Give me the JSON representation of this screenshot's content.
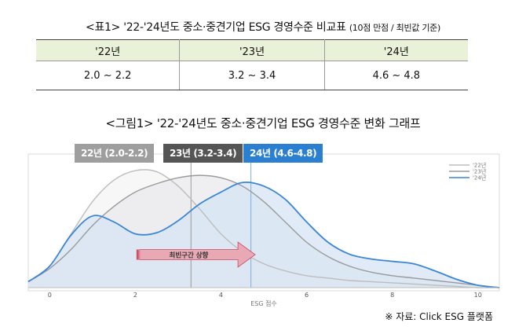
{
  "table": {
    "caption": "<표1> '22-'24년도 중소·중견기업 ESG 경영수준 비교표",
    "caption_note": "(10점 만점 / 최빈값 기준)",
    "headers": [
      "'22년",
      "'23년",
      "'24년"
    ],
    "row": [
      "2.0 ~ 2.2",
      "3.2 ~ 3.4",
      "4.6 ~ 4.8"
    ]
  },
  "figure": {
    "caption": "<그림1> '22-'24년도 중소·중견기업 ESG 경영수준 변화 그래프",
    "badges": [
      "22년 (2.0-2.2)",
      "23년 (3.2-3.4)",
      "24년 (4.6-4.8)"
    ],
    "arrow_label": "최빈구간 상향",
    "source": "※ 자료: Click ESG 플랫폼"
  },
  "colors": {
    "y22": "#bdbdbd",
    "y23": "#9a9a9a",
    "y24": "#3b86d6",
    "fill24": "#d6e4f4",
    "arrow": "#e8a9b4",
    "badge22": "#9e9e9e",
    "badge23": "#555555",
    "badge24": "#2a7fd0"
  },
  "chart_data": {
    "type": "area",
    "xlabel": "ESG 점수",
    "xlim": [
      -0.5,
      10.5
    ],
    "xticks": [
      "0",
      "2",
      "4",
      "6",
      "8",
      "10"
    ],
    "ylim": [
      0,
      1
    ],
    "legend": {
      "position": "top-right",
      "labels": [
        "'22년",
        "'23년",
        "'24년"
      ]
    },
    "x": [
      -0.5,
      0,
      0.5,
      1,
      1.5,
      2,
      2.5,
      3,
      3.5,
      4,
      4.5,
      5,
      5.5,
      6,
      6.5,
      7,
      7.5,
      8,
      8.5,
      9,
      9.5,
      10,
      10.5
    ],
    "series": [
      {
        "name": "'22년",
        "values": [
          0.05,
          0.18,
          0.45,
          0.72,
          0.9,
          0.98,
          0.97,
          0.85,
          0.66,
          0.45,
          0.3,
          0.2,
          0.14,
          0.1,
          0.08,
          0.06,
          0.05,
          0.04,
          0.03,
          0.02,
          0.01,
          0.0,
          0.0
        ]
      },
      {
        "name": "'23년",
        "values": [
          0.05,
          0.16,
          0.32,
          0.52,
          0.68,
          0.8,
          0.87,
          0.92,
          0.94,
          0.92,
          0.85,
          0.72,
          0.55,
          0.38,
          0.26,
          0.18,
          0.13,
          0.1,
          0.08,
          0.06,
          0.04,
          0.02,
          0.0
        ]
      },
      {
        "name": "'24년",
        "values": [
          0.05,
          0.18,
          0.44,
          0.6,
          0.55,
          0.45,
          0.46,
          0.56,
          0.7,
          0.8,
          0.88,
          0.85,
          0.74,
          0.55,
          0.38,
          0.28,
          0.24,
          0.22,
          0.2,
          0.14,
          0.07,
          0.02,
          0.0
        ]
      }
    ],
    "reference_lines": [
      3.3,
      4.7
    ],
    "arrow": {
      "from": 2.1,
      "to": 4.8
    }
  }
}
